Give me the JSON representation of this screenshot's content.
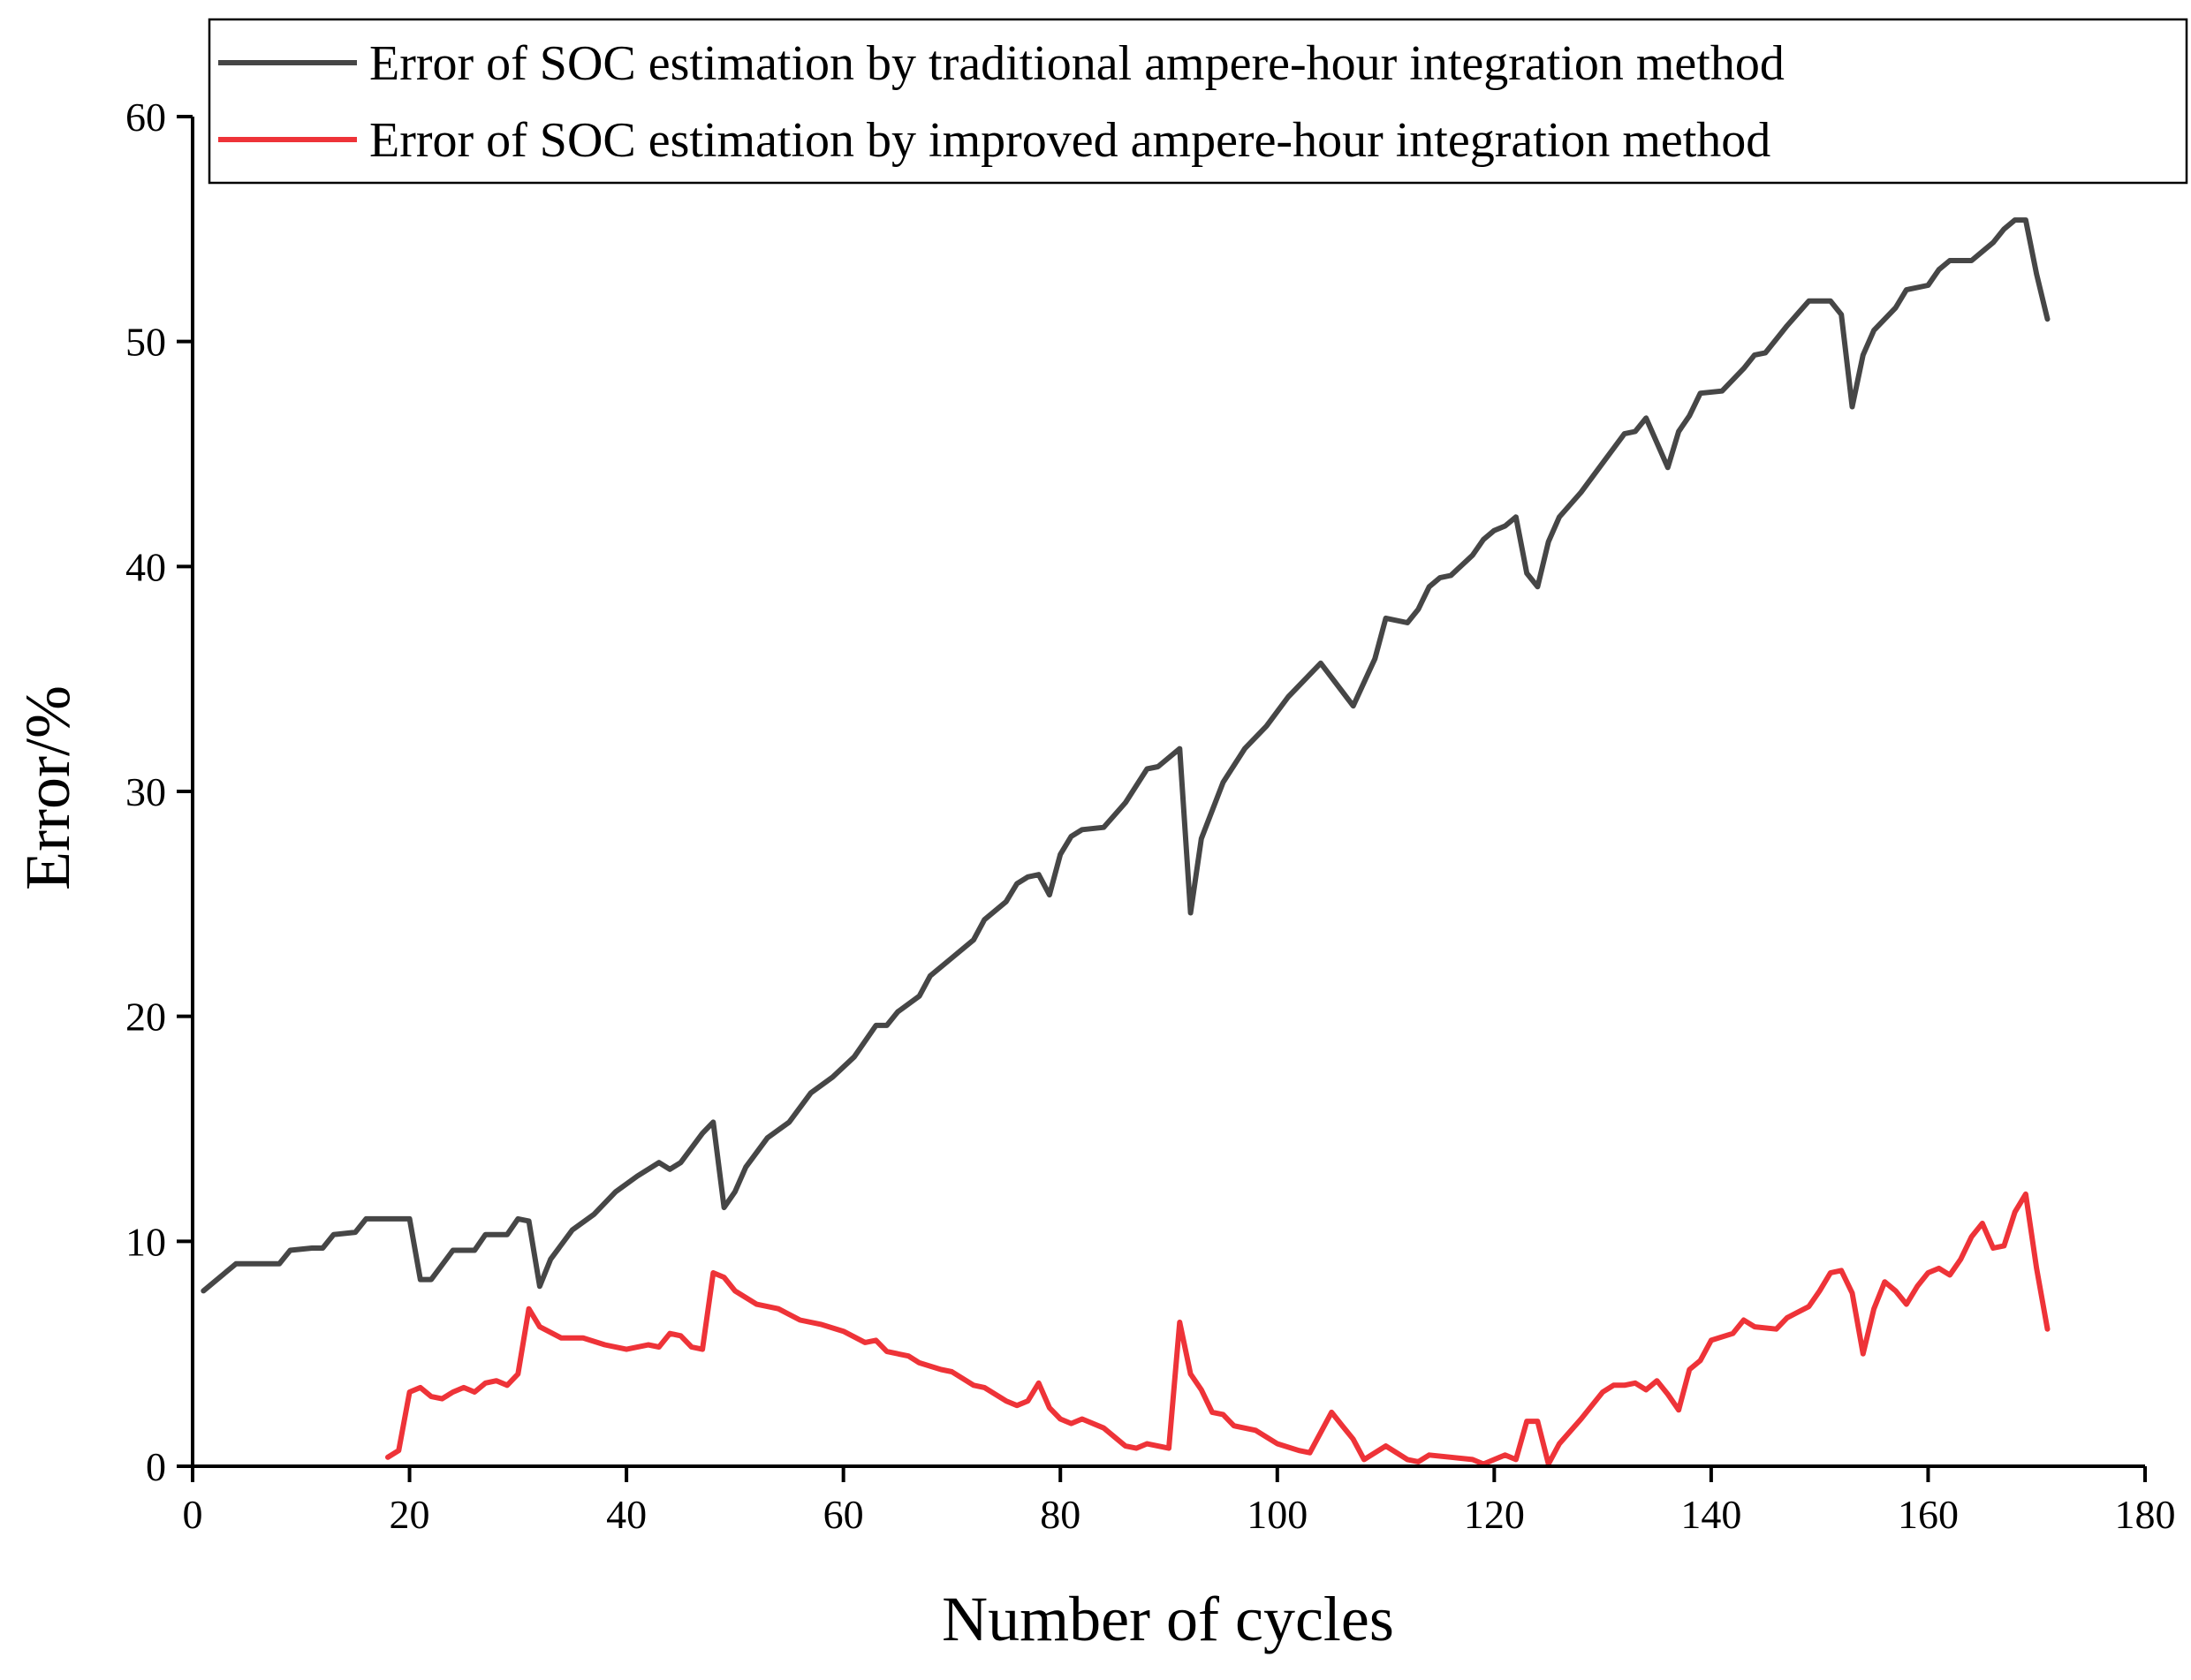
{
  "chart_data": {
    "type": "line",
    "title": "",
    "xlabel": "Number of cycles",
    "ylabel": "Error/%",
    "xlim": [
      0,
      180
    ],
    "ylim": [
      0,
      60
    ],
    "xticks": [
      0,
      20,
      40,
      60,
      80,
      100,
      120,
      140,
      160,
      180
    ],
    "yticks": [
      0,
      10,
      20,
      30,
      40,
      50,
      60
    ],
    "grid": false,
    "legend_position": "top-right",
    "series": [
      {
        "name": "Error of SOC estimation by traditional ampere-hour integration method",
        "color": "#464646",
        "points": [
          [
            1,
            7.8
          ],
          [
            3,
            8.6
          ],
          [
            4,
            9.0
          ],
          [
            6,
            9.0
          ],
          [
            8,
            9.0
          ],
          [
            9,
            9.6
          ],
          [
            11,
            9.7
          ],
          [
            12,
            9.7
          ],
          [
            13,
            10.3
          ],
          [
            15,
            10.4
          ],
          [
            16,
            11.0
          ],
          [
            18,
            11.0
          ],
          [
            20,
            11.0
          ],
          [
            21,
            8.3
          ],
          [
            22,
            8.3
          ],
          [
            24,
            9.6
          ],
          [
            26,
            9.6
          ],
          [
            27,
            10.3
          ],
          [
            29,
            10.3
          ],
          [
            30,
            11.0
          ],
          [
            31,
            10.9
          ],
          [
            32,
            8.0
          ],
          [
            33,
            9.2
          ],
          [
            35,
            10.5
          ],
          [
            37,
            11.2
          ],
          [
            39,
            12.2
          ],
          [
            41,
            12.9
          ],
          [
            43,
            13.5
          ],
          [
            44,
            13.2
          ],
          [
            45,
            13.5
          ],
          [
            47,
            14.8
          ],
          [
            48,
            15.3
          ],
          [
            49,
            11.5
          ],
          [
            50,
            12.2
          ],
          [
            51,
            13.3
          ],
          [
            53,
            14.6
          ],
          [
            55,
            15.3
          ],
          [
            57,
            16.6
          ],
          [
            59,
            17.3
          ],
          [
            61,
            18.2
          ],
          [
            63,
            19.6
          ],
          [
            64,
            19.6
          ],
          [
            65,
            20.2
          ],
          [
            67,
            20.9
          ],
          [
            68,
            21.8
          ],
          [
            70,
            22.6
          ],
          [
            72,
            23.4
          ],
          [
            73,
            24.3
          ],
          [
            75,
            25.1
          ],
          [
            76,
            25.9
          ],
          [
            77,
            26.2
          ],
          [
            78,
            26.3
          ],
          [
            79,
            25.4
          ],
          [
            80,
            27.2
          ],
          [
            81,
            28.0
          ],
          [
            82,
            28.3
          ],
          [
            84,
            28.4
          ],
          [
            86,
            29.5
          ],
          [
            88,
            31.0
          ],
          [
            89,
            31.1
          ],
          [
            91,
            31.9
          ],
          [
            92,
            24.6
          ],
          [
            93,
            27.9
          ],
          [
            95,
            30.4
          ],
          [
            97,
            31.9
          ],
          [
            99,
            32.9
          ],
          [
            101,
            34.2
          ],
          [
            104,
            35.7
          ],
          [
            107,
            33.8
          ],
          [
            109,
            35.9
          ],
          [
            110,
            37.7
          ],
          [
            112,
            37.5
          ],
          [
            113,
            38.1
          ],
          [
            114,
            39.1
          ],
          [
            115,
            39.5
          ],
          [
            116,
            39.6
          ],
          [
            118,
            40.5
          ],
          [
            119,
            41.2
          ],
          [
            120,
            41.6
          ],
          [
            121,
            41.8
          ],
          [
            122,
            42.2
          ],
          [
            123,
            39.7
          ],
          [
            124,
            39.1
          ],
          [
            125,
            41.1
          ],
          [
            126,
            42.2
          ],
          [
            128,
            43.3
          ],
          [
            130,
            44.6
          ],
          [
            132,
            45.9
          ],
          [
            133,
            46.0
          ],
          [
            134,
            46.6
          ],
          [
            136,
            44.4
          ],
          [
            137,
            46.0
          ],
          [
            138,
            46.7
          ],
          [
            139,
            47.7
          ],
          [
            141,
            47.8
          ],
          [
            143,
            48.8
          ],
          [
            144,
            49.4
          ],
          [
            145,
            49.5
          ],
          [
            147,
            50.7
          ],
          [
            149,
            51.8
          ],
          [
            151,
            51.8
          ],
          [
            152,
            51.2
          ],
          [
            153,
            47.1
          ],
          [
            154,
            49.4
          ],
          [
            155,
            50.5
          ],
          [
            157,
            51.5
          ],
          [
            158,
            52.3
          ],
          [
            160,
            52.5
          ],
          [
            161,
            53.2
          ],
          [
            162,
            53.6
          ],
          [
            164,
            53.6
          ],
          [
            165,
            54.0
          ],
          [
            166,
            54.4
          ],
          [
            167,
            55.0
          ],
          [
            168,
            55.4
          ],
          [
            169,
            55.4
          ],
          [
            170,
            53.0
          ],
          [
            171,
            51.0
          ]
        ]
      },
      {
        "name": "Error of SOC estimation by improved ampere-hour integration method",
        "color": "#ee3338",
        "points": [
          [
            18,
            0.4
          ],
          [
            19,
            0.7
          ],
          [
            20,
            3.3
          ],
          [
            21,
            3.5
          ],
          [
            22,
            3.1
          ],
          [
            23,
            3.0
          ],
          [
            24,
            3.3
          ],
          [
            25,
            3.5
          ],
          [
            26,
            3.3
          ],
          [
            27,
            3.7
          ],
          [
            28,
            3.8
          ],
          [
            29,
            3.6
          ],
          [
            30,
            4.1
          ],
          [
            31,
            7.0
          ],
          [
            32,
            6.2
          ],
          [
            34,
            5.7
          ],
          [
            36,
            5.7
          ],
          [
            38,
            5.4
          ],
          [
            40,
            5.2
          ],
          [
            42,
            5.4
          ],
          [
            43,
            5.3
          ],
          [
            44,
            5.9
          ],
          [
            45,
            5.8
          ],
          [
            46,
            5.3
          ],
          [
            47,
            5.2
          ],
          [
            48,
            8.6
          ],
          [
            49,
            8.4
          ],
          [
            50,
            7.8
          ],
          [
            52,
            7.2
          ],
          [
            54,
            7.0
          ],
          [
            56,
            6.5
          ],
          [
            58,
            6.3
          ],
          [
            60,
            6.0
          ],
          [
            62,
            5.5
          ],
          [
            63,
            5.6
          ],
          [
            64,
            5.1
          ],
          [
            66,
            4.9
          ],
          [
            67,
            4.6
          ],
          [
            69,
            4.3
          ],
          [
            70,
            4.2
          ],
          [
            72,
            3.6
          ],
          [
            73,
            3.5
          ],
          [
            75,
            2.9
          ],
          [
            76,
            2.7
          ],
          [
            77,
            2.9
          ],
          [
            78,
            3.7
          ],
          [
            79,
            2.6
          ],
          [
            80,
            2.1
          ],
          [
            81,
            1.9
          ],
          [
            82,
            2.1
          ],
          [
            84,
            1.7
          ],
          [
            86,
            0.9
          ],
          [
            87,
            0.8
          ],
          [
            88,
            1.0
          ],
          [
            90,
            0.8
          ],
          [
            91,
            6.4
          ],
          [
            92,
            4.1
          ],
          [
            93,
            3.4
          ],
          [
            94,
            2.4
          ],
          [
            95,
            2.3
          ],
          [
            96,
            1.8
          ],
          [
            98,
            1.6
          ],
          [
            100,
            1.0
          ],
          [
            102,
            0.7
          ],
          [
            103,
            0.6
          ],
          [
            105,
            2.4
          ],
          [
            106,
            1.8
          ],
          [
            107,
            1.2
          ],
          [
            108,
            0.3
          ],
          [
            110,
            0.9
          ],
          [
            111,
            0.6
          ],
          [
            112,
            0.3
          ],
          [
            113,
            0.2
          ],
          [
            114,
            0.5
          ],
          [
            116,
            0.4
          ],
          [
            118,
            0.3
          ],
          [
            119,
            0.1
          ],
          [
            120,
            0.3
          ],
          [
            121,
            0.5
          ],
          [
            122,
            0.3
          ],
          [
            123,
            2.0
          ],
          [
            124,
            2.0
          ],
          [
            125,
            0.1
          ],
          [
            126,
            1.0
          ],
          [
            128,
            2.1
          ],
          [
            130,
            3.3
          ],
          [
            131,
            3.6
          ],
          [
            132,
            3.6
          ],
          [
            133,
            3.7
          ],
          [
            134,
            3.4
          ],
          [
            135,
            3.8
          ],
          [
            136,
            3.2
          ],
          [
            137,
            2.5
          ],
          [
            138,
            4.3
          ],
          [
            139,
            4.7
          ],
          [
            140,
            5.6
          ],
          [
            142,
            5.9
          ],
          [
            143,
            6.5
          ],
          [
            144,
            6.2
          ],
          [
            146,
            6.1
          ],
          [
            147,
            6.6
          ],
          [
            149,
            7.1
          ],
          [
            150,
            7.8
          ],
          [
            151,
            8.6
          ],
          [
            152,
            8.7
          ],
          [
            153,
            7.7
          ],
          [
            154,
            5.0
          ],
          [
            155,
            7.0
          ],
          [
            156,
            8.2
          ],
          [
            157,
            7.8
          ],
          [
            158,
            7.2
          ],
          [
            159,
            8.0
          ],
          [
            160,
            8.6
          ],
          [
            161,
            8.8
          ],
          [
            162,
            8.5
          ],
          [
            163,
            9.2
          ],
          [
            164,
            10.2
          ],
          [
            165,
            10.8
          ],
          [
            166,
            9.7
          ],
          [
            167,
            9.8
          ],
          [
            168,
            11.3
          ],
          [
            169,
            12.1
          ],
          [
            170,
            8.8
          ],
          [
            171,
            6.1
          ]
        ]
      }
    ]
  }
}
